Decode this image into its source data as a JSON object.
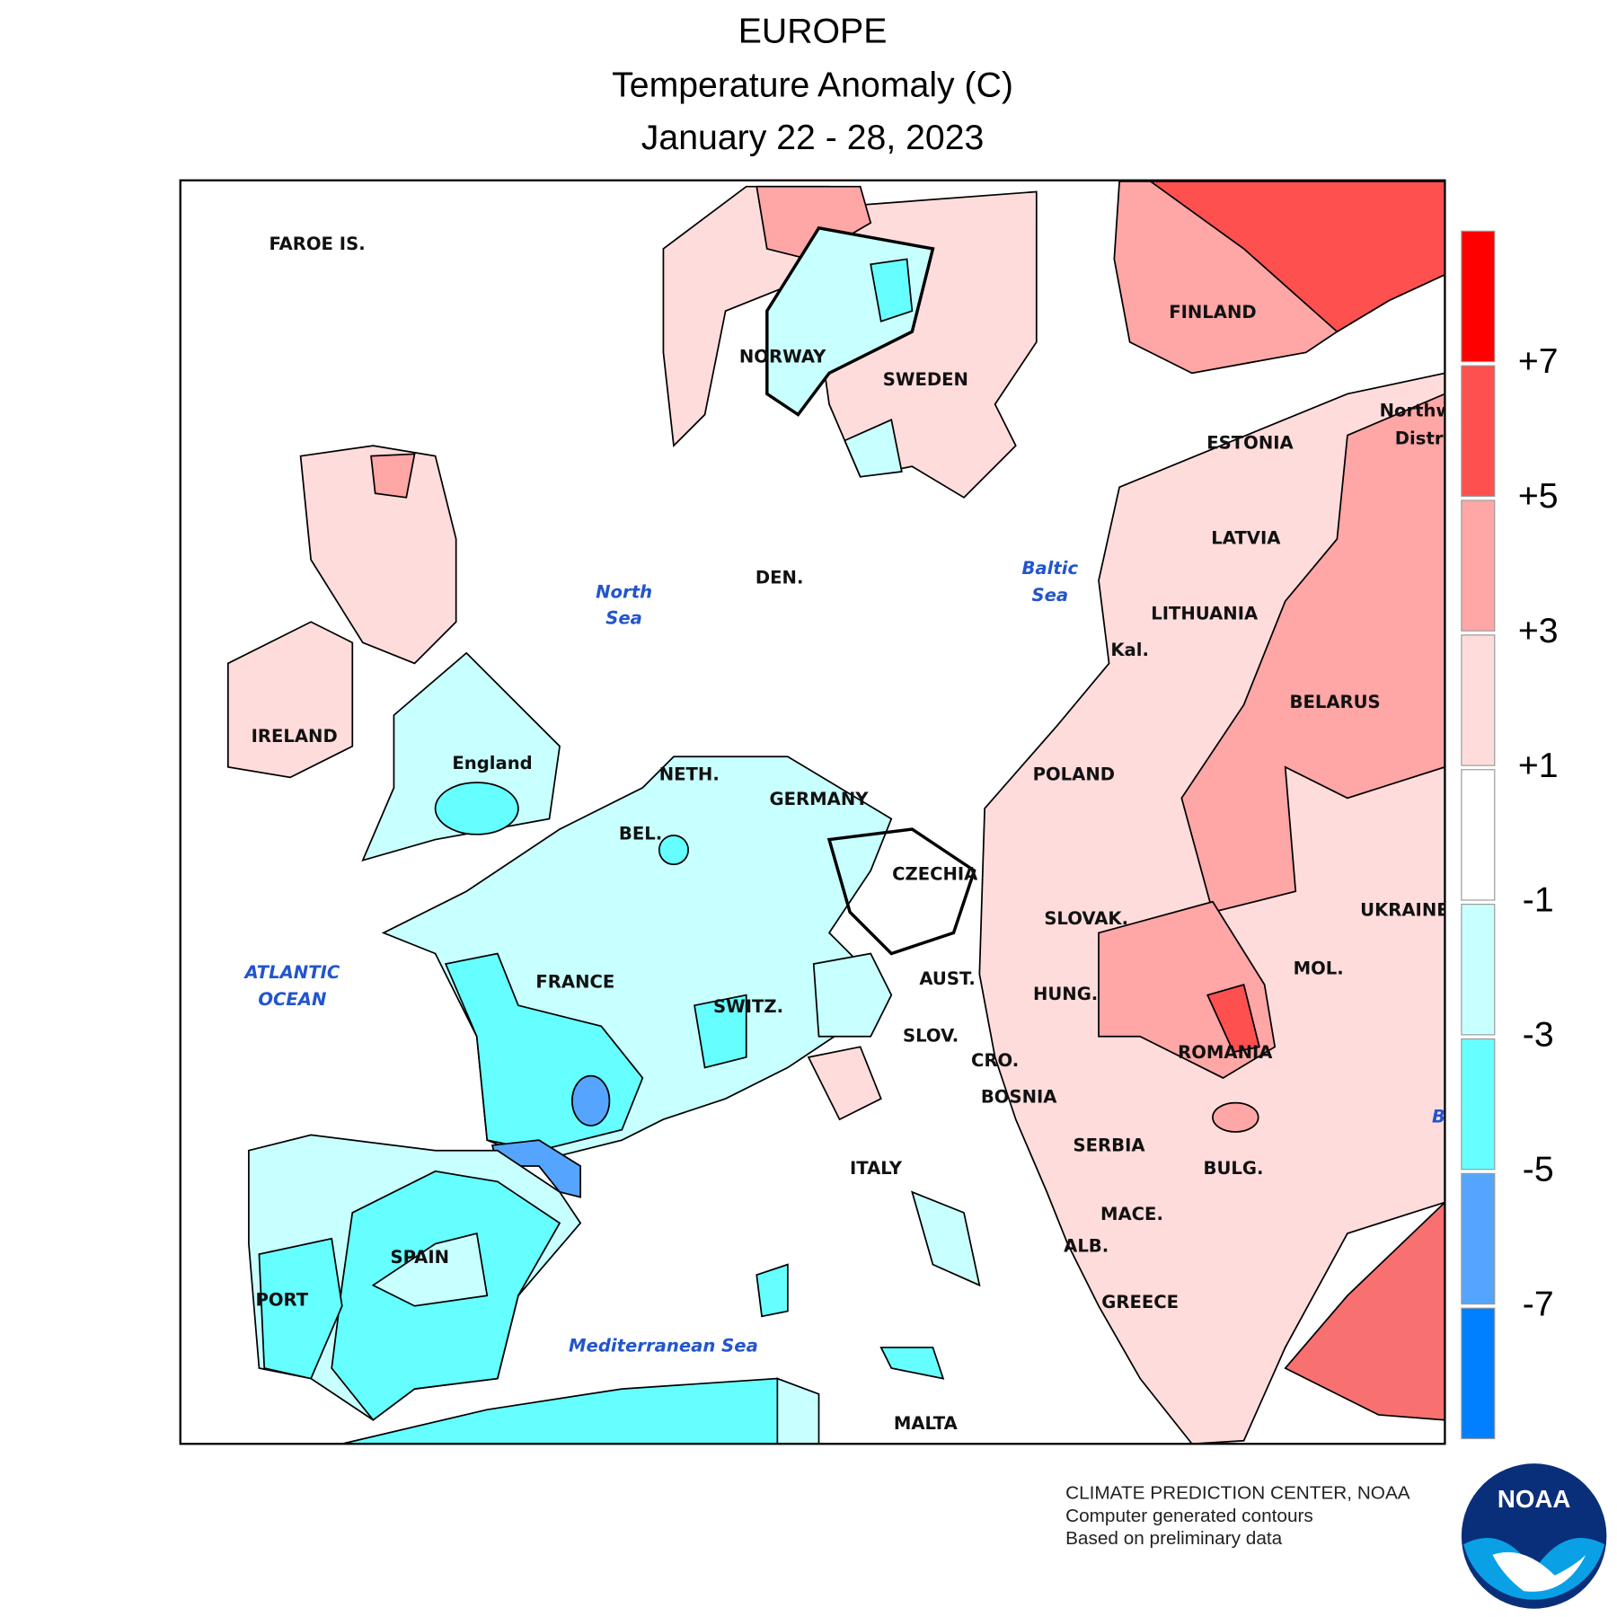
{
  "header": {
    "title": "EUROPE",
    "subtitle": "Temperature Anomaly (C)",
    "dates": "January 22 - 28, 2023"
  },
  "map": {
    "labels": [
      "FAROE IS.",
      "NORWAY",
      "SWEDEN",
      "FINLAND",
      "ESTONIA",
      "LATVIA",
      "LITHUANIA",
      "BELARUS",
      "Kal.",
      "DEN.",
      "IRELAND",
      "England",
      "NETH.",
      "GERMANY",
      "BEL.",
      "POLAND",
      "CZECHIA",
      "SLOVAK.",
      "UKRAINE",
      "FRANCE",
      "AUST.",
      "SWITZ.",
      "HUNG.",
      "MOL.",
      "SLOV.",
      "CRO.",
      "ROMANIA",
      "BOSNIA",
      "SERBIA",
      "ITALY",
      "BULG.",
      "MACE.",
      "ALB.",
      "SPAIN",
      "PORT",
      "GREECE",
      "MALTA",
      "Northw",
      "Distri"
    ],
    "seas": [
      "North",
      "Sea",
      "Baltic",
      "Sea",
      "ATLANTIC",
      "OCEAN",
      "Mediterranean Sea",
      "B"
    ]
  },
  "legend": {
    "colors": [
      "#ff0000",
      "#ff5050",
      "#ffa6a6",
      "#ffdcdc",
      "#ffffff",
      "#c8ffff",
      "#66ffff",
      "#55a5ff",
      "#0080ff"
    ],
    "labels": [
      "+7",
      "+5",
      "+3",
      "+1",
      "-1",
      "-3",
      "-5",
      "-7"
    ]
  },
  "credits": [
    "CLIMATE PREDICTION CENTER, NOAA",
    "Computer generated contours",
    "Based on preliminary data"
  ],
  "logo": "NOAA"
}
